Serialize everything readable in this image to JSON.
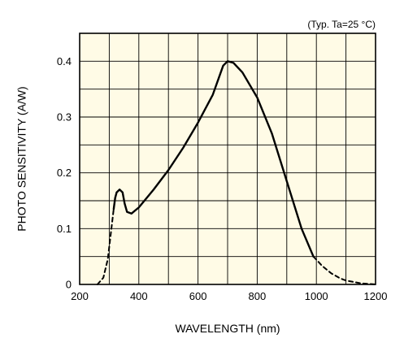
{
  "chart_data": {
    "type": "line",
    "annotation": "(Typ. Ta=25 °C)",
    "xlabel": "WAVELENGTH (nm)",
    "ylabel": "PHOTO SENSITIVITY (A/W)",
    "xlim": [
      200,
      1200
    ],
    "ylim": [
      0,
      0.45
    ],
    "x_ticks": [
      200,
      400,
      600,
      800,
      1000,
      1200
    ],
    "x_tick_labels": [
      "200",
      "400",
      "600",
      "800",
      "1000",
      "1200"
    ],
    "y_ticks": [
      0,
      0.1,
      0.2,
      0.3,
      0.4
    ],
    "y_tick_labels": [
      "0",
      "0.1",
      "0.2",
      "0.3",
      "0.4"
    ],
    "grid": true,
    "background_color": "#fffbe6",
    "line_color": "#000000",
    "series": [
      {
        "style": "dashed",
        "points": [
          [
            260,
            0.0
          ],
          [
            280,
            0.012
          ],
          [
            295,
            0.045
          ],
          [
            305,
            0.09
          ],
          [
            315,
            0.135
          ]
        ]
      },
      {
        "style": "solid",
        "points": [
          [
            315,
            0.135
          ],
          [
            320,
            0.155
          ],
          [
            325,
            0.165
          ],
          [
            335,
            0.17
          ],
          [
            345,
            0.165
          ],
          [
            352,
            0.145
          ],
          [
            360,
            0.13
          ],
          [
            375,
            0.127
          ],
          [
            400,
            0.138
          ],
          [
            450,
            0.17
          ],
          [
            500,
            0.205
          ],
          [
            550,
            0.245
          ],
          [
            600,
            0.29
          ],
          [
            650,
            0.34
          ],
          [
            685,
            0.392
          ],
          [
            700,
            0.4
          ],
          [
            720,
            0.397
          ],
          [
            750,
            0.38
          ],
          [
            800,
            0.335
          ],
          [
            850,
            0.27
          ],
          [
            900,
            0.185
          ],
          [
            950,
            0.1
          ],
          [
            990,
            0.05
          ]
        ]
      },
      {
        "style": "dashed",
        "points": [
          [
            990,
            0.05
          ],
          [
            1020,
            0.033
          ],
          [
            1050,
            0.02
          ],
          [
            1080,
            0.011
          ],
          [
            1100,
            0.007
          ],
          [
            1150,
            0.002
          ],
          [
            1200,
            0.0
          ]
        ]
      }
    ]
  }
}
